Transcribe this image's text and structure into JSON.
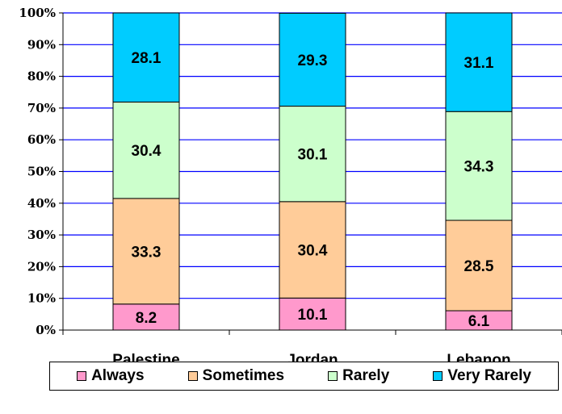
{
  "chart_data": {
    "type": "bar",
    "stacked": true,
    "percent_axis": true,
    "categories": [
      "Palestine",
      "Jordan",
      "Lebanon"
    ],
    "series": [
      {
        "name": "Always",
        "color": "#ff99cc",
        "values": [
          8.2,
          10.1,
          6.1
        ]
      },
      {
        "name": "Sometimes",
        "color": "#ffcc99",
        "values": [
          33.3,
          30.4,
          28.5
        ]
      },
      {
        "name": "Rarely",
        "color": "#ccffcc",
        "values": [
          30.4,
          30.1,
          34.3
        ]
      },
      {
        "name": "Very Rarely",
        "color": "#00ccff",
        "values": [
          28.1,
          29.3,
          31.1
        ]
      }
    ],
    "yticks": [
      "0%",
      "10%",
      "20%",
      "30%",
      "40%",
      "50%",
      "60%",
      "70%",
      "80%",
      "90%",
      "100%"
    ],
    "ylim": [
      0,
      100
    ],
    "grid": true,
    "gridline_color": "#0000ff",
    "legend_position": "bottom",
    "title": "",
    "xlabel": "",
    "ylabel": ""
  }
}
